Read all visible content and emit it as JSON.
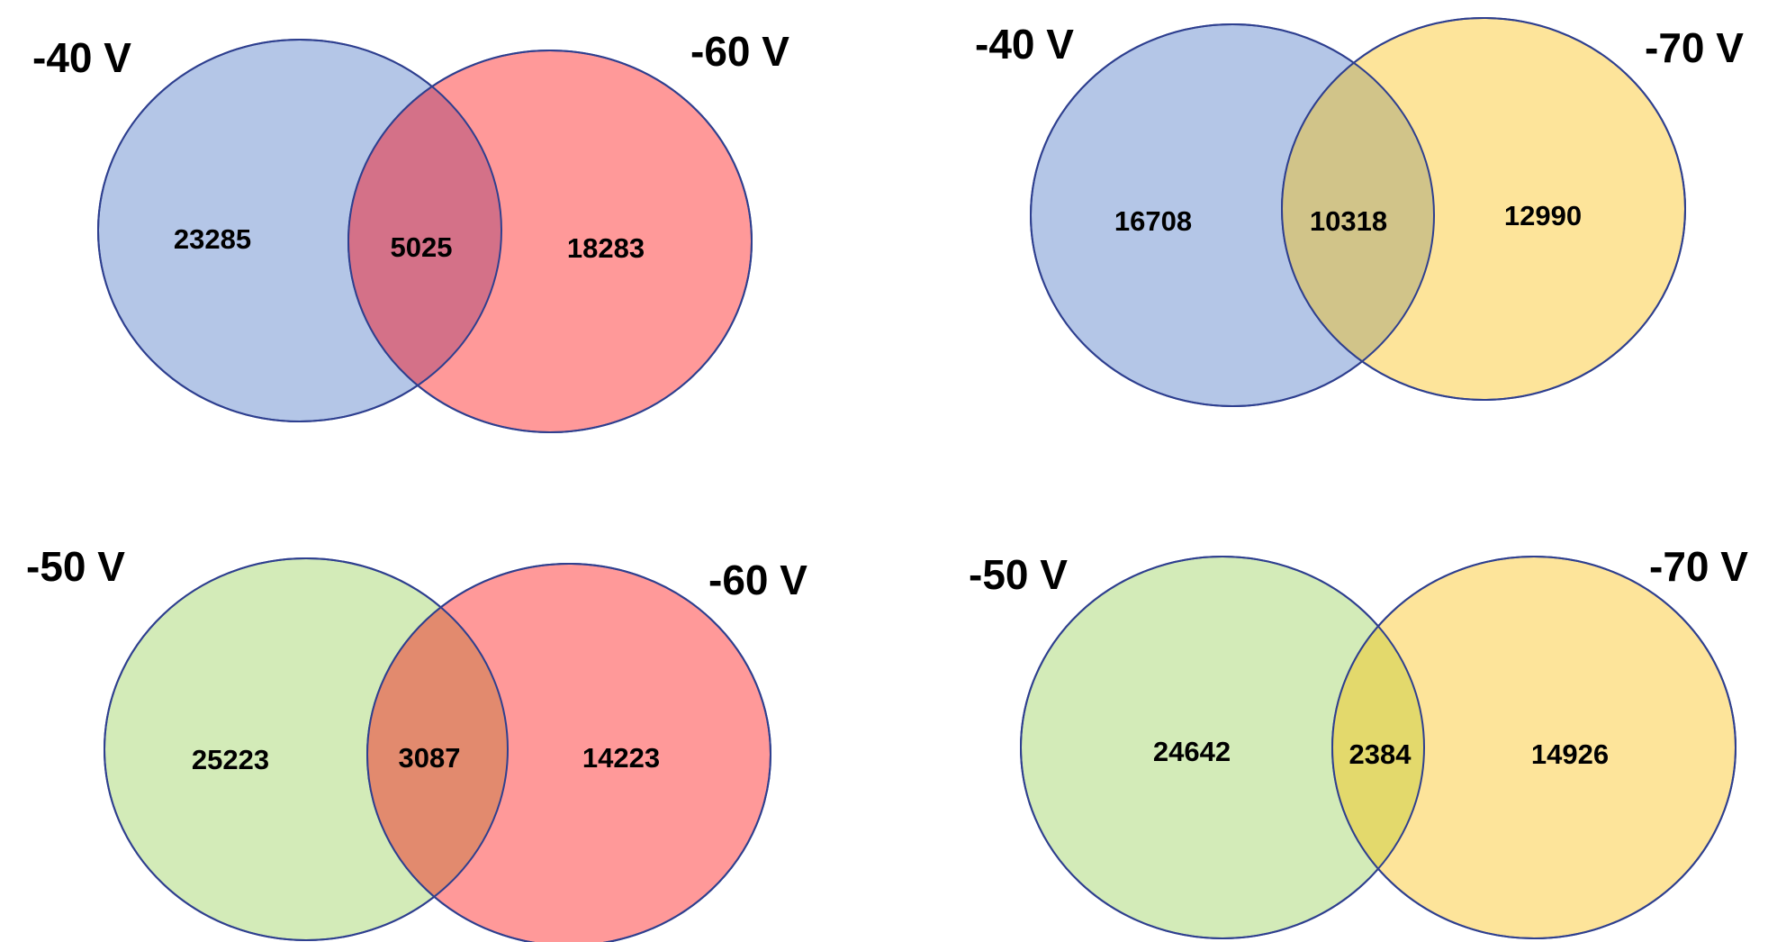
{
  "colors": {
    "v40": "#b4c6e7",
    "v50": "#d3ebb8",
    "v60": "#ff9999",
    "v70": "#fde49a",
    "overlap_40_60": "#d47188",
    "overlap_40_70": "#d1c489",
    "overlap_50_60": "#e28a6e",
    "overlap_50_70": "#e3d96c",
    "outline": "#2e3f8f"
  },
  "diagrams": [
    {
      "left_label": "-40 V",
      "right_label": "-60 V",
      "left_only": "23285",
      "overlap": "5025",
      "right_only": "18283"
    },
    {
      "left_label": "-40 V",
      "right_label": "-70 V",
      "left_only": "16708",
      "overlap": "10318",
      "right_only": "12990"
    },
    {
      "left_label": "-50 V",
      "right_label": "-60 V",
      "left_only": "25223",
      "overlap": "3087",
      "right_only": "14223"
    },
    {
      "left_label": "-50 V",
      "right_label": "-70 V",
      "left_only": "24642",
      "overlap": "2384",
      "right_only": "14926"
    }
  ]
}
